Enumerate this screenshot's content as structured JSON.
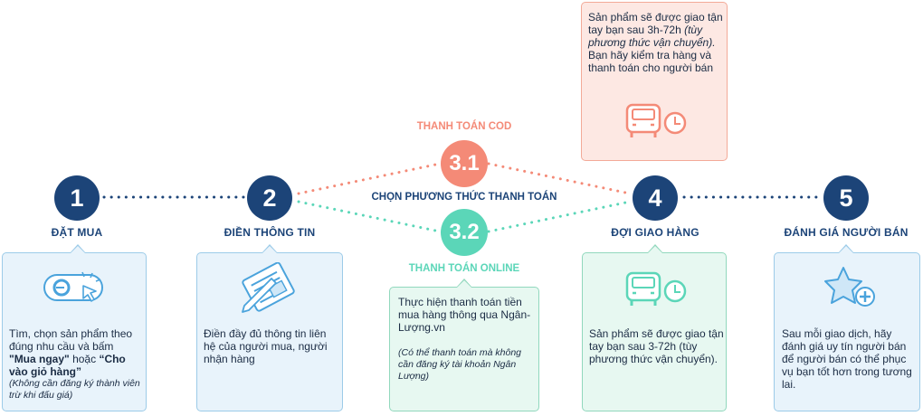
{
  "steps": [
    {
      "number": "1",
      "label": "ĐẶT MUA"
    },
    {
      "number": "2",
      "label": "ĐIỀN THÔNG TIN"
    },
    {
      "number": "4",
      "label": "ĐỢI GIAO HÀNG"
    },
    {
      "number": "5",
      "label": "ĐÁNH GIÁ NGƯỜI BÁN"
    }
  ],
  "payment": {
    "center_label": "CHỌN PHƯƠNG THỨC THANH TOÁN",
    "cod": {
      "number": "3.1",
      "label": "THANH TOÁN COD"
    },
    "online": {
      "number": "3.2",
      "label": "THANH TOÁN ONLINE"
    }
  },
  "boxes": {
    "order": {
      "text_pre": "Tìm, chọn sản phẩm theo đúng nhu cầu và bấm ",
      "bold1": "\"Mua ngay\"",
      "text_mid": " hoặc ",
      "bold2": "“Cho vào giỏ hàng”",
      "note": "(Không cần đăng ký thành viên trừ khi đấu giá)"
    },
    "info": {
      "text": "Điền đầy đủ thông tin liên hệ của người mua, người nhận hàng"
    },
    "online": {
      "text": "Thực hiện thanh toán tiền mua hàng thông qua Ngân-Lượng.vn",
      "note": "(Có thể thanh toán mà không cần đăng ký tài khoản Ngân Lượng)"
    },
    "cod": {
      "text_pre": "Sản phẩm sẽ được giao tận tay bạn sau 3h-72h ",
      "italic": "(tùy phương thức vận chuyển).",
      "text_post": " Bạn hãy kiểm tra hàng và thanh toán cho người bán"
    },
    "delivery": {
      "text": "Sản phẩm sẽ được giao tận tay bạn sau  3-72h (tùy phương thức vận chuyển)."
    },
    "review": {
      "text": "Sau mỗi giao dịch, hãy đánh giá uy tín người bán để người bán có thể phục vụ bạn tốt hơn trong tương lai."
    }
  },
  "colors": {
    "navy": "#1c4478",
    "salmon": "#f48a77",
    "mint": "#5bd6b8",
    "sky": "#4aa3dc"
  }
}
